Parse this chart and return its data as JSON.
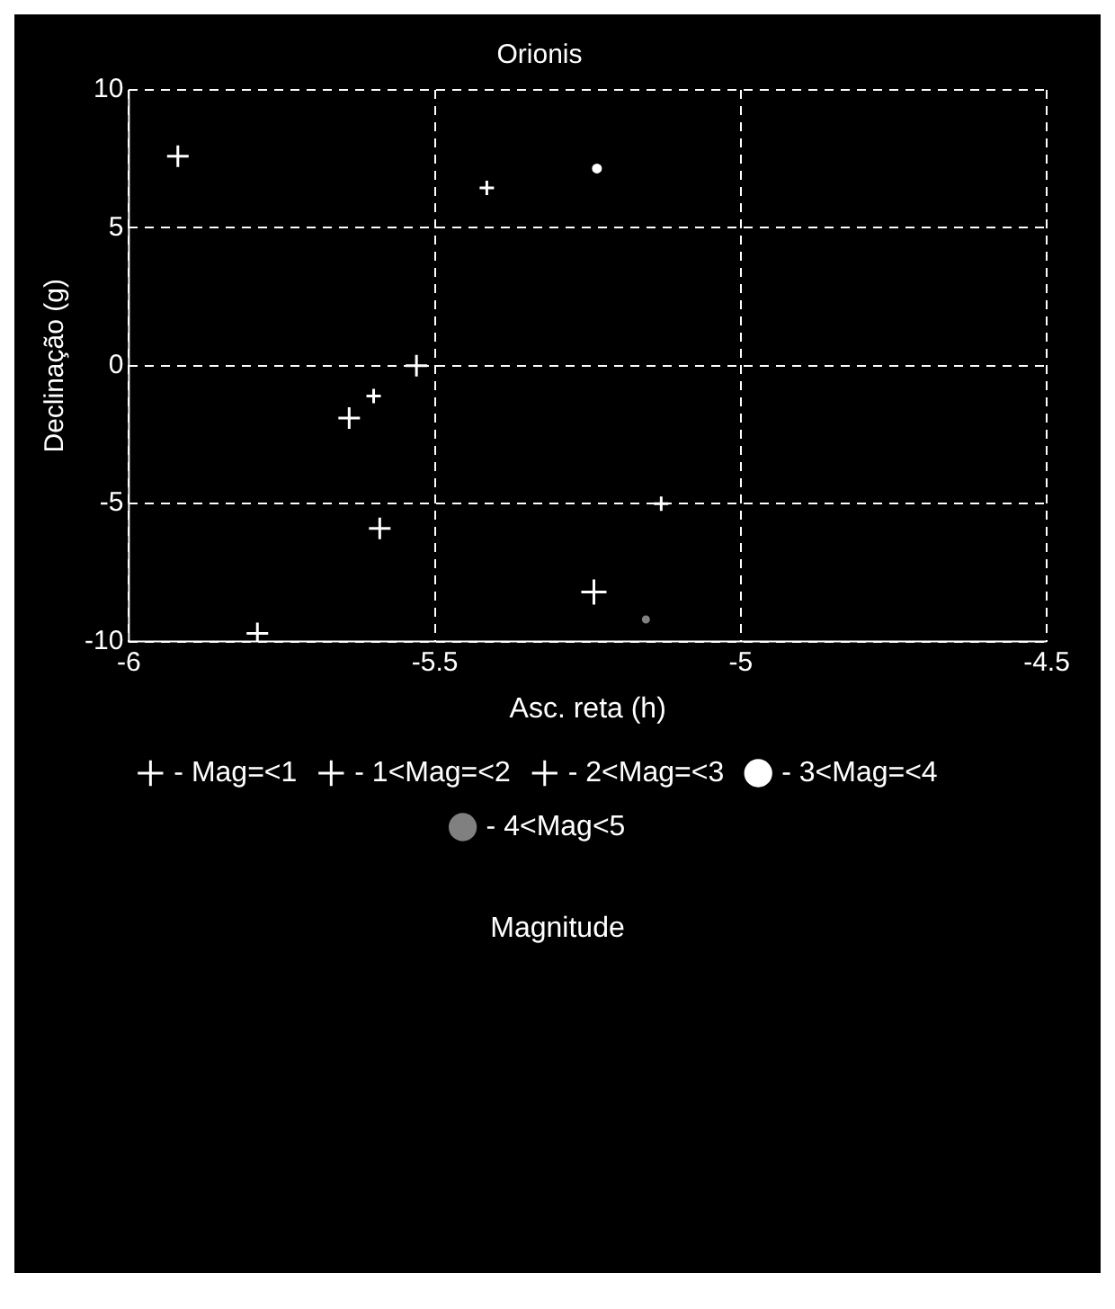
{
  "chart_data": {
    "type": "scatter",
    "title": "Orionis",
    "xlabel": "Asc. reta (h)",
    "ylabel": "Declinação (g)",
    "legend_title": "Magnitude",
    "xlim": [
      -6,
      -4.5
    ],
    "xticks": [
      -6,
      -5.5,
      -5,
      -4.5
    ],
    "ylim": [
      -10,
      10
    ],
    "yticks": [
      -10,
      -5,
      0,
      5,
      10
    ],
    "grid": true,
    "line_style": "dashed",
    "legend": "bottom",
    "series": [
      {
        "name": "- Mag=<1",
        "color": "#ffffff",
        "marker": "cross",
        "x": [
          -5.24
        ],
        "values": [
          -8.2
        ]
      },
      {
        "name": "- 1<Mag=<2",
        "color": "#ffffff",
        "marker": "cross",
        "x": [
          -5.92,
          -5.79,
          -5.64,
          -5.53,
          -5.59
        ],
        "values": [
          7.6,
          -9.7,
          -1.9,
          0,
          -5.9
        ]
      },
      {
        "name": "- 2<Mag=<3",
        "color": "#ffffff",
        "marker": "cross",
        "x": [
          -5.6,
          -5.415,
          -5.13
        ],
        "values": [
          -1.1,
          6.45,
          -5
        ]
      },
      {
        "name": "- 3<Mag=<4",
        "color": "#ffffff",
        "marker": "circle",
        "x": [
          -5.235
        ],
        "values": [
          7.15
        ]
      },
      {
        "name": "- 4<Mag<5",
        "color": "#808080",
        "marker": "circle",
        "x": [
          -5.155
        ],
        "values": [
          -9.2
        ]
      }
    ]
  }
}
